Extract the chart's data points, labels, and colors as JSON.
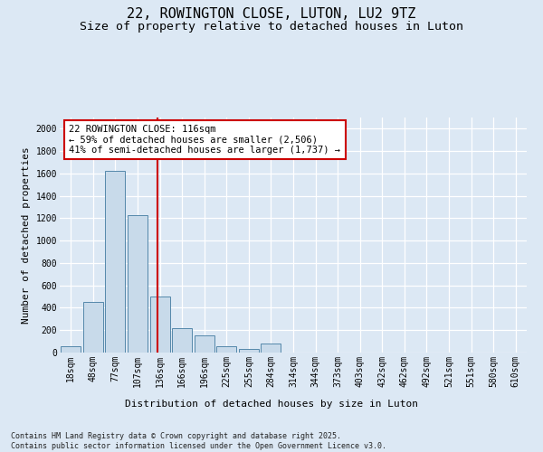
{
  "title": "22, ROWINGTON CLOSE, LUTON, LU2 9TZ",
  "subtitle": "Size of property relative to detached houses in Luton",
  "xlabel": "Distribution of detached houses by size in Luton",
  "ylabel": "Number of detached properties",
  "categories": [
    "18sqm",
    "48sqm",
    "77sqm",
    "107sqm",
    "136sqm",
    "166sqm",
    "196sqm",
    "225sqm",
    "255sqm",
    "284sqm",
    "314sqm",
    "344sqm",
    "373sqm",
    "403sqm",
    "432sqm",
    "462sqm",
    "492sqm",
    "521sqm",
    "551sqm",
    "580sqm",
    "610sqm"
  ],
  "values": [
    55,
    450,
    1620,
    1230,
    500,
    215,
    150,
    55,
    35,
    80,
    0,
    0,
    0,
    0,
    0,
    0,
    0,
    0,
    0,
    0,
    0
  ],
  "bar_color": "#c8daea",
  "bar_edge_color": "#5588aa",
  "red_line_x": 3.88,
  "annotation_line1": "22 ROWINGTON CLOSE: 116sqm",
  "annotation_line2": "← 59% of detached houses are smaller (2,506)",
  "annotation_line3": "41% of semi-detached houses are larger (1,737) →",
  "annotation_box_color": "white",
  "annotation_box_edge_color": "#cc0000",
  "red_line_color": "#cc0000",
  "ylim": [
    0,
    2100
  ],
  "yticks": [
    0,
    200,
    400,
    600,
    800,
    1000,
    1200,
    1400,
    1600,
    1800,
    2000
  ],
  "footnote1": "Contains HM Land Registry data © Crown copyright and database right 2025.",
  "footnote2": "Contains public sector information licensed under the Open Government Licence v3.0.",
  "bg_color": "#dce8f4",
  "plot_bg_color": "#dce8f4",
  "grid_color": "white",
  "title_fontsize": 11,
  "subtitle_fontsize": 9.5,
  "axis_label_fontsize": 8,
  "tick_fontsize": 7,
  "annotation_fontsize": 7.5,
  "footnote_fontsize": 6
}
